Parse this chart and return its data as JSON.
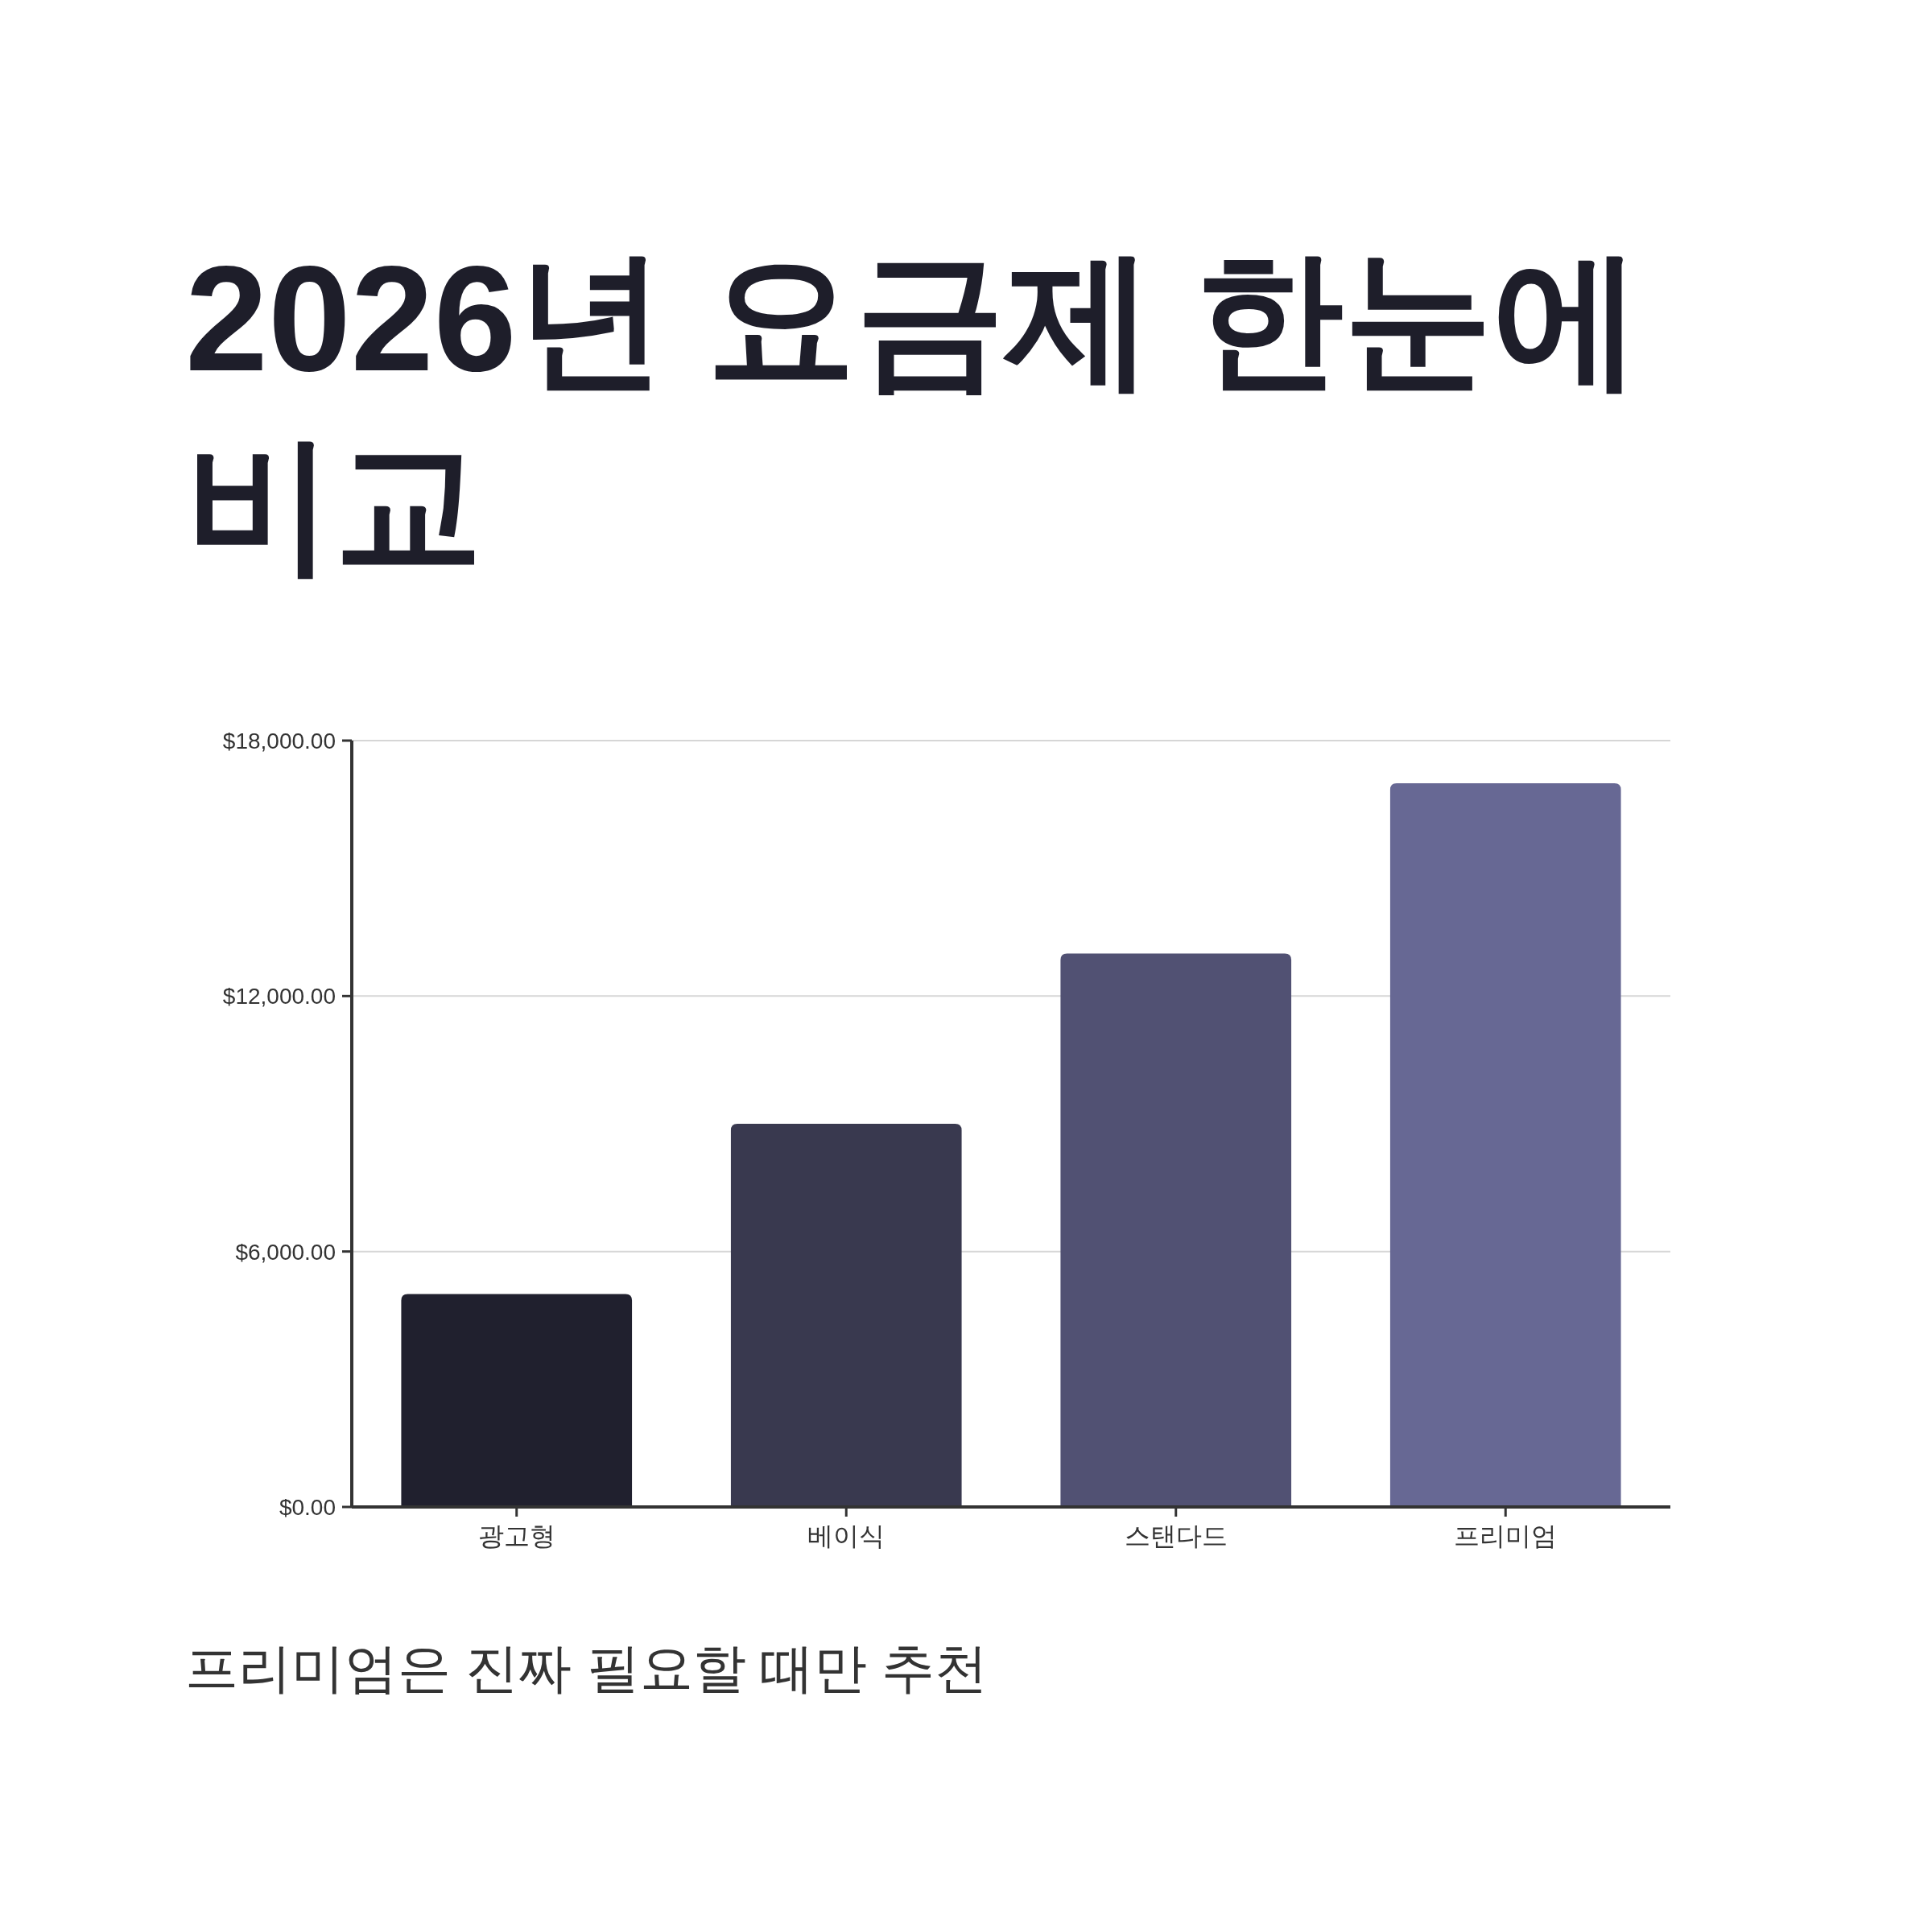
{
  "chart_data": {
    "type": "bar",
    "title": "2026년 요금제 한눈에 비교",
    "categories": [
      "광고형",
      "베이식",
      "스탠다드",
      "프리미엄"
    ],
    "values": [
      5000,
      9000,
      13000,
      17000
    ],
    "colors": [
      "#20202e",
      "#39394f",
      "#515173",
      "#676894"
    ],
    "ylim": [
      0,
      18000
    ],
    "yticks": [
      {
        "value": 0,
        "label": "$0.00"
      },
      {
        "value": 6000,
        "label": "$6,000.00"
      },
      {
        "value": 12000,
        "label": "$12,000.00"
      },
      {
        "value": 18000,
        "label": "$18,000.00"
      }
    ],
    "grid": "y",
    "annotations": [
      "프리미엄은 진짜 필요할 때만 추천"
    ]
  }
}
